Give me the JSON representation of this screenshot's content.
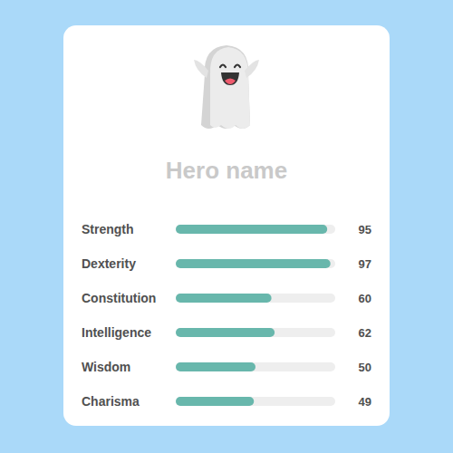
{
  "chart_data": {
    "type": "bar",
    "title": "Hero name",
    "orientation": "horizontal",
    "categories": [
      "Strength",
      "Dexterity",
      "Constitution",
      "Intelligence",
      "Wisdom",
      "Charisma"
    ],
    "values": [
      95,
      97,
      60,
      62,
      50,
      49
    ],
    "color": "#68b7ac",
    "xlim": [
      0,
      100
    ],
    "grid": false,
    "data_labels": true,
    "tick_labels": "y"
  }
}
